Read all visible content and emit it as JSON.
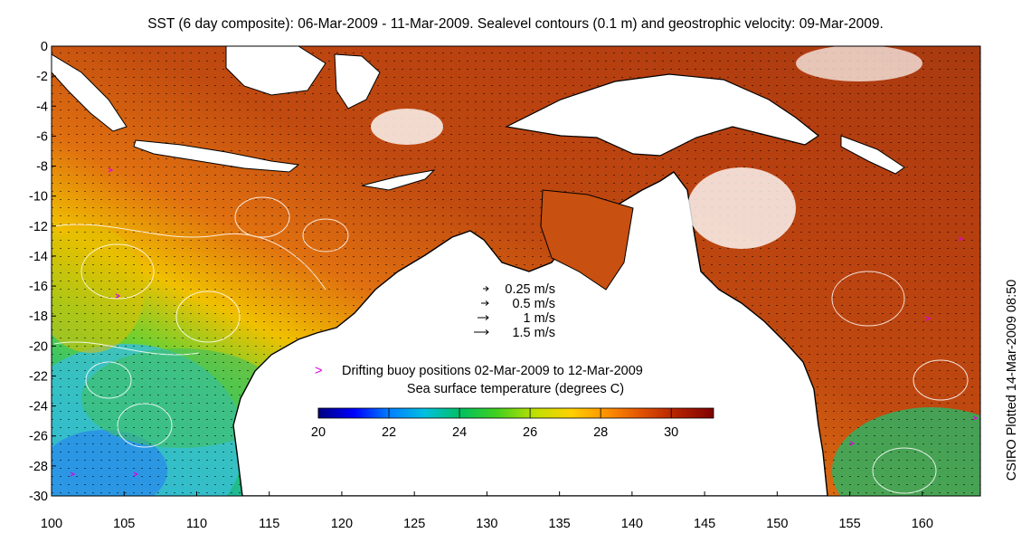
{
  "title": "SST (6 day composite): 06-Mar-2009 - 11-Mar-2009. Sealevel contours (0.1 m) and geostrophic velocity: 09-Mar-2009.",
  "credit": "CSIRO Plotted 14-Mar-2009 08:50",
  "velocity_legend": [
    {
      "label": "0.25 m/s",
      "value": 0.25
    },
    {
      "label": "0.5 m/s",
      "value": 0.5
    },
    {
      "label": "1 m/s",
      "value": 1
    },
    {
      "label": "1.5 m/s",
      "value": 1.5
    }
  ],
  "buoy_legend": {
    "marker": ">",
    "label": "Drifting buoy positions 02-Mar-2009 to 12-Mar-2009",
    "color": "#e000e0"
  },
  "colorbar": {
    "title": "Sea surface temperature (degrees C)",
    "min": 20,
    "max": 31.2,
    "ticks": [
      20,
      22,
      24,
      26,
      28,
      30
    ],
    "colors": [
      "#00007f",
      "#0000ff",
      "#0080ff",
      "#00c0e0",
      "#00c060",
      "#40d020",
      "#c0e000",
      "#ffd000",
      "#ff9000",
      "#e05000",
      "#b02000",
      "#800000"
    ]
  },
  "axes": {
    "x_ticks": [
      100,
      105,
      110,
      115,
      120,
      125,
      130,
      135,
      140,
      145,
      150,
      155,
      160
    ],
    "y_ticks": [
      0,
      -2,
      -4,
      -6,
      -8,
      -10,
      -12,
      -14,
      -16,
      -18,
      -20,
      -22,
      -24,
      -26,
      -28,
      -30
    ],
    "lon_range": [
      100,
      164
    ],
    "lat_range": [
      -30,
      0
    ]
  },
  "colors": {
    "land": "#ffffff",
    "coast": "#000000",
    "contour": "#ffffff",
    "vector": "#000000"
  }
}
